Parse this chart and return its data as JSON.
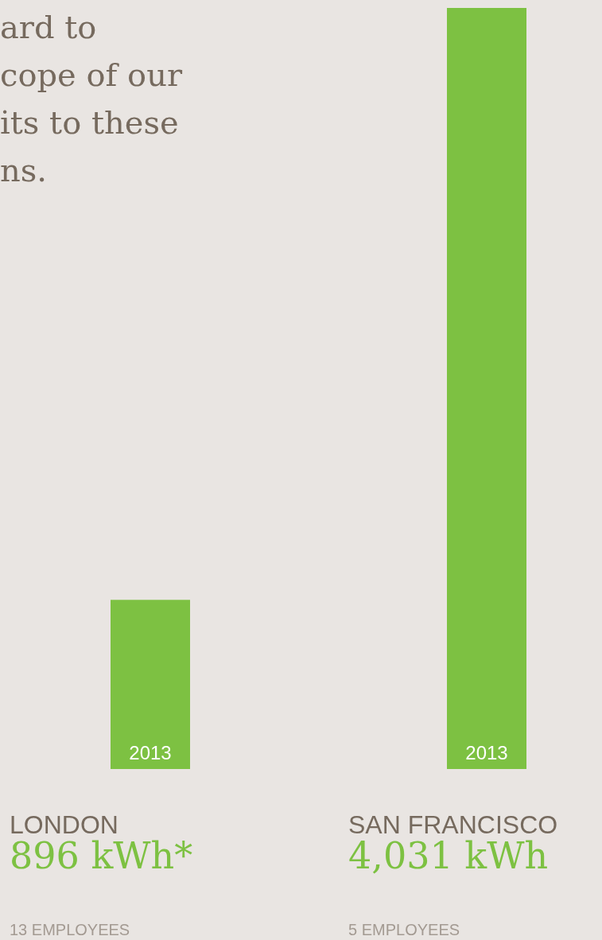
{
  "chart_data": {
    "type": "bar",
    "categories": [
      "LONDON",
      "SAN FRANCISCO"
    ],
    "values": [
      896,
      4031
    ],
    "color": "#7dc142",
    "value_labels": [
      "896 kWh*",
      "4,031 kWh"
    ],
    "annotations": [
      "ard to",
      "cope of our",
      "its to these",
      "ns.",
      "2013",
      "2013",
      "13 EMPLOYEES",
      "5 EMPLOYEES"
    ]
  }
}
